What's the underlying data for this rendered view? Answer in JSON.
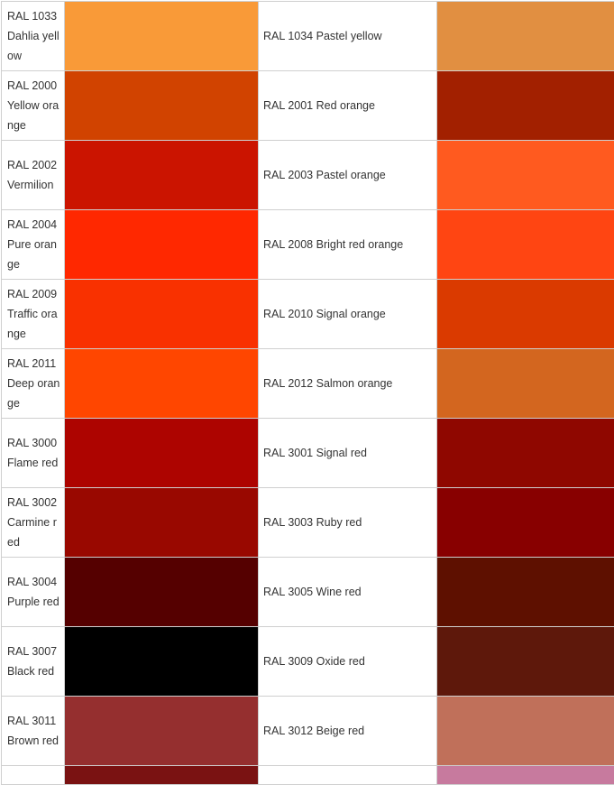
{
  "rows": [
    {
      "left_label": "RAL 1033 Dahlia yellow",
      "left_color": "#F99A38",
      "right_label": "RAL 1034 Pastel yellow",
      "right_color": "#E18F41"
    },
    {
      "left_label": "RAL 2000 Yellow orange",
      "left_color": "#D14300",
      "right_label": "RAL 2001 Red orange",
      "right_color": "#A22000"
    },
    {
      "left_label": "RAL 2002 Vermilion",
      "left_color": "#CB1400",
      "right_label": "RAL 2003 Pastel orange",
      "right_color": "#FF5A1F"
    },
    {
      "left_label": "RAL 2004 Pure orange",
      "left_color": "#FF2800",
      "right_label": "RAL 2008 Bright red orange",
      "right_color": "#FF4512"
    },
    {
      "left_label": "RAL 2009 Traffic orange",
      "left_color": "#F93100",
      "right_label": "RAL 2010 Signal orange",
      "right_color": "#DA3A00"
    },
    {
      "left_label": "RAL 2011 Deep orange",
      "left_color": "#FF4600",
      "right_label": "RAL 2012 Salmon orange",
      "right_color": "#D3661F"
    },
    {
      "left_label": "RAL 3000 Flame red",
      "left_color": "#AD0400",
      "right_label": "RAL 3001 Signal red",
      "right_color": "#8F0700"
    },
    {
      "left_label": "RAL 3002 Carmine red",
      "left_color": "#990800",
      "right_label": "RAL 3003 Ruby red",
      "right_color": "#880000"
    },
    {
      "left_label": "RAL 3004 Purple red",
      "left_color": "#550000",
      "right_label": "RAL 3005 Wine red",
      "right_color": "#5E1000"
    },
    {
      "left_label": "RAL 3007 Black red",
      "left_color": "#000000",
      "right_label": "RAL 3009 Oxide red",
      "right_color": "#5E180B"
    },
    {
      "left_label": "RAL 3011 Brown red",
      "left_color": "#952F2F",
      "right_label": "RAL 3012 Beige red",
      "right_color": "#C0705A"
    }
  ],
  "partial_row": {
    "left_color": "#7A1212",
    "right_color": "#C77A9E"
  }
}
